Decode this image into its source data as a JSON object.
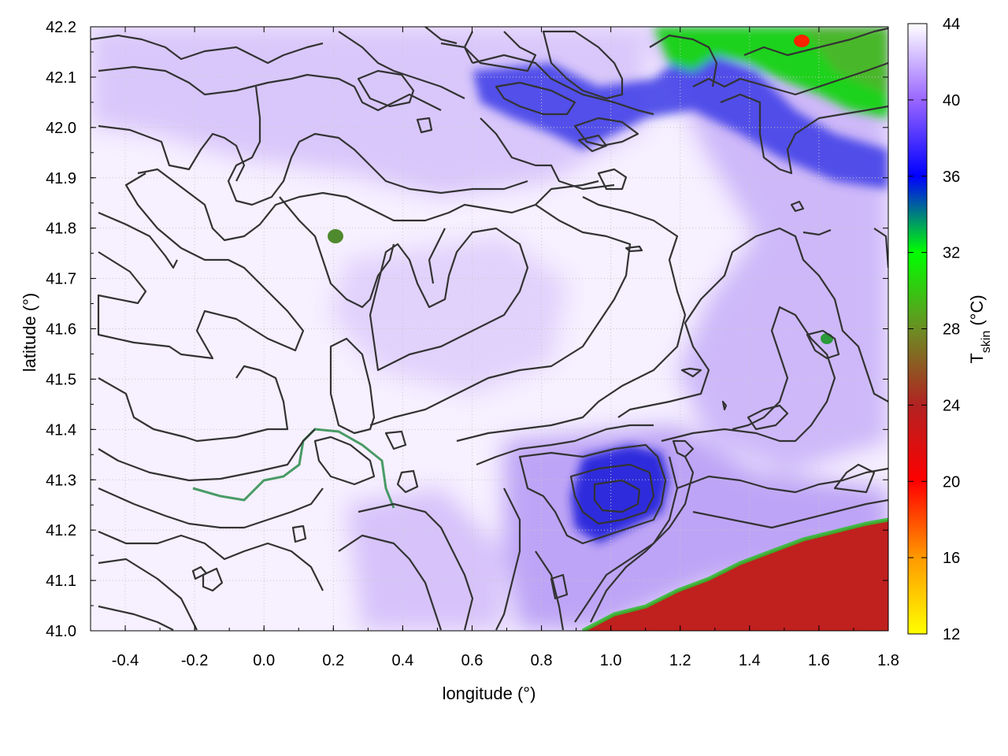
{
  "chart_data": {
    "type": "heatmap",
    "title": "",
    "xlabel": "longitude (°)",
    "ylabel": "latitude (°)",
    "xlim": [
      -0.5,
      1.8
    ],
    "ylim": [
      41.0,
      42.2
    ],
    "xticks": [
      "-0.4",
      "-0.2",
      "0.0",
      "0.2",
      "0.4",
      "0.6",
      "0.8",
      "1.0",
      "1.2",
      "1.4",
      "1.6",
      "1.8"
    ],
    "yticks": [
      "41.0",
      "41.1",
      "41.2",
      "41.3",
      "41.4",
      "41.5",
      "41.6",
      "41.7",
      "41.8",
      "41.9",
      "42.0",
      "42.1",
      "42.2"
    ],
    "colorbar": {
      "label_main": "T",
      "label_sub": "skin",
      "label_unit": " (°C)",
      "range": [
        12,
        44
      ],
      "ticks": [
        "12",
        "16",
        "20",
        "24",
        "28",
        "32",
        "36",
        "40",
        "44"
      ],
      "colors": [
        "#ffff00",
        "#ff9900",
        "#ff0000",
        "#b22222",
        "#6b8e23",
        "#00ff00",
        "#0000ff",
        "#9966ff",
        "#ffffff"
      ]
    },
    "regions": [
      {
        "name": "sea",
        "value": 25,
        "color": "#c0201e"
      },
      {
        "name": "northeast-high-terrain",
        "value": 30,
        "color": "#22cc22"
      },
      {
        "name": "northeast-red-spot",
        "value": 21,
        "color": "#ff2200"
      },
      {
        "name": "cool-pocket-1.0E-41.3N",
        "value": 36,
        "color": "#2a2adf"
      },
      {
        "name": "interior-plain",
        "value": 42,
        "color": "#f6f0ff"
      }
    ],
    "contour_color": "#333333",
    "grid": true
  }
}
